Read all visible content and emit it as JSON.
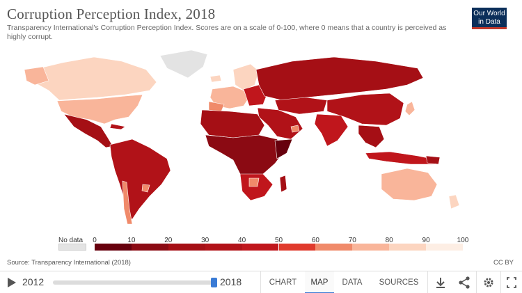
{
  "header": {
    "title": "Corruption Perception Index, 2018",
    "subtitle": "Transparency International's Corruption Perception Index. Scores are on a scale of 0-100, where 0 means that a country is perceived as highly corrupt.",
    "logo_text": "Our World in Data"
  },
  "legend": {
    "no_data_label": "No data",
    "no_data_color": "#e3e3e3",
    "ticks": [
      "0",
      "10",
      "20",
      "30",
      "40",
      "50",
      "60",
      "70",
      "80",
      "90",
      "100"
    ],
    "bins": [
      {
        "from": 0,
        "to": 10,
        "color": "#67000d"
      },
      {
        "from": 10,
        "to": 20,
        "color": "#8b0a13"
      },
      {
        "from": 20,
        "to": 30,
        "color": "#a50f15"
      },
      {
        "from": 30,
        "to": 40,
        "color": "#b11218"
      },
      {
        "from": 40,
        "to": 50,
        "color": "#c0161c"
      },
      {
        "from": 50,
        "to": 60,
        "color": "#e03a2c"
      },
      {
        "from": 60,
        "to": 70,
        "color": "#f08a6a"
      },
      {
        "from": 70,
        "to": 80,
        "color": "#f9b59a"
      },
      {
        "from": 80,
        "to": 90,
        "color": "#fcd5c0"
      },
      {
        "from": 90,
        "to": 100,
        "color": "#fdeee4"
      }
    ]
  },
  "map": {
    "regions": [
      {
        "name": "canada",
        "score_bin": "80-90",
        "color": "#fcd5c0"
      },
      {
        "name": "greenland",
        "score_bin": "no data",
        "color": "#e3e3e3"
      },
      {
        "name": "usa",
        "score_bin": "70-80",
        "color": "#f9b59a"
      },
      {
        "name": "mexico-central-america",
        "score_bin": "20-30",
        "color": "#a50f15"
      },
      {
        "name": "south-america",
        "score_bin": "30-40",
        "color": "#b11218"
      },
      {
        "name": "chile-uruguay",
        "score_bin": "60-70",
        "color": "#f08a6a"
      },
      {
        "name": "western-europe",
        "score_bin": "70-80",
        "color": "#f9b59a"
      },
      {
        "name": "nordics",
        "score_bin": "80-90",
        "color": "#fcd5c0"
      },
      {
        "name": "russia",
        "score_bin": "20-30",
        "color": "#a50f15"
      },
      {
        "name": "africa",
        "score_bin": "20-30",
        "color": "#a50f15"
      },
      {
        "name": "southern-africa",
        "score_bin": "40-50",
        "color": "#c0161c"
      },
      {
        "name": "middle-east",
        "score_bin": "30-40",
        "color": "#b11218"
      },
      {
        "name": "asia",
        "score_bin": "30-40",
        "color": "#b11218"
      },
      {
        "name": "japan",
        "score_bin": "70-80",
        "color": "#f9b59a"
      },
      {
        "name": "australia",
        "score_bin": "70-80",
        "color": "#f9b59a"
      },
      {
        "name": "new-zealand",
        "score_bin": "80-90",
        "color": "#fcd5c0"
      }
    ]
  },
  "footer": {
    "source": "Source: Transparency International (2018)",
    "license": "CC BY"
  },
  "controls": {
    "year_start": "2012",
    "year_end": "2018",
    "tabs": [
      "CHART",
      "MAP",
      "DATA",
      "SOURCES"
    ],
    "active_tab": "MAP",
    "accent_color": "#3a7bd5"
  }
}
